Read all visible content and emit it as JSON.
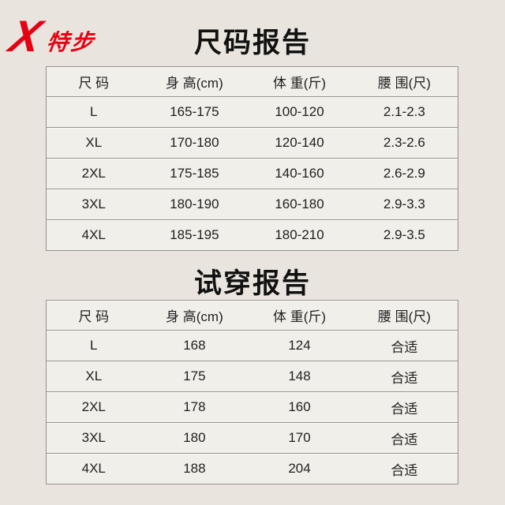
{
  "brand": {
    "logo_mark": "X",
    "logo_text": "特步"
  },
  "size_report": {
    "title": "尺码报告",
    "columns": [
      "尺 码",
      "身 高(cm)",
      "体 重(斤)",
      "腰 围(尺)"
    ],
    "rows": [
      [
        "L",
        "165-175",
        "100-120",
        "2.1-2.3"
      ],
      [
        "XL",
        "170-180",
        "120-140",
        "2.3-2.6"
      ],
      [
        "2XL",
        "175-185",
        "140-160",
        "2.6-2.9"
      ],
      [
        "3XL",
        "180-190",
        "160-180",
        "2.9-3.3"
      ],
      [
        "4XL",
        "185-195",
        "180-210",
        "2.9-3.5"
      ]
    ]
  },
  "fitting_report": {
    "title": "试穿报告",
    "columns": [
      "尺 码",
      "身 高(cm)",
      "体 重(斤)",
      "腰 围(尺)"
    ],
    "rows": [
      [
        "L",
        "168",
        "124",
        "合适"
      ],
      [
        "XL",
        "175",
        "148",
        "合适"
      ],
      [
        "2XL",
        "178",
        "160",
        "合适"
      ],
      [
        "3XL",
        "180",
        "170",
        "合适"
      ],
      [
        "4XL",
        "188",
        "204",
        "合适"
      ]
    ]
  },
  "colors": {
    "background": "#e9e5de",
    "table_fill": "#f1efea",
    "border": "#96928b",
    "text": "#1f1f1f",
    "brand_red": "#e60012"
  }
}
